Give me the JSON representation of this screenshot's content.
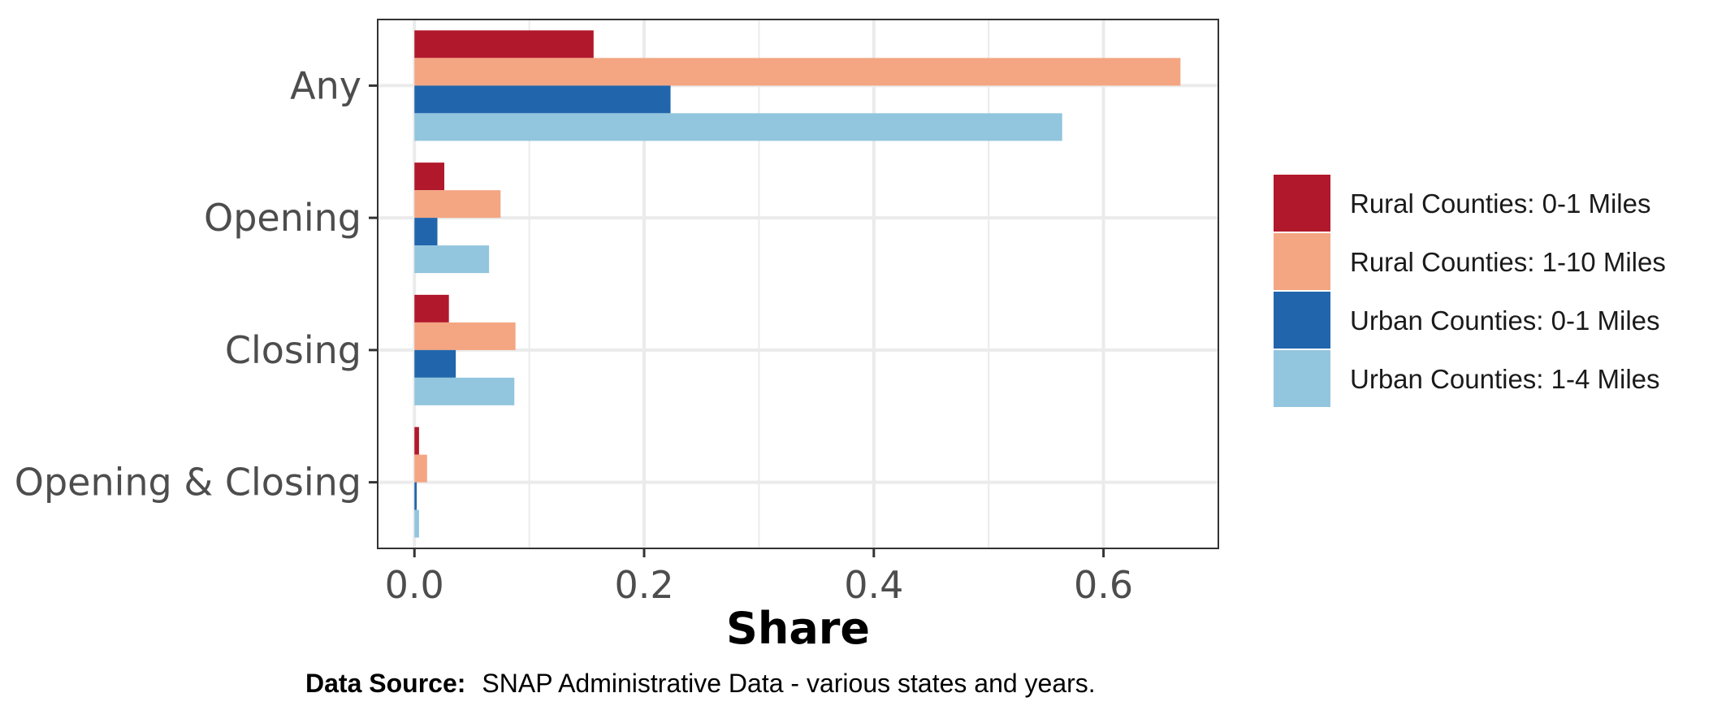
{
  "chart_data": {
    "type": "bar",
    "orientation": "horizontal",
    "categories": [
      "Any",
      "Opening",
      "Closing",
      "Opening & Closing"
    ],
    "series": [
      {
        "name": "Rural Counties: 0-1 Miles",
        "color": "#b2182b",
        "values": [
          0.156,
          0.026,
          0.03,
          0.004
        ]
      },
      {
        "name": "Rural Counties: 1-10 Miles",
        "color": "#f4a582",
        "values": [
          0.667,
          0.075,
          0.088,
          0.011
        ]
      },
      {
        "name": "Urban Counties: 0-1 Miles",
        "color": "#2166ac",
        "values": [
          0.223,
          0.02,
          0.036,
          0.002
        ]
      },
      {
        "name": "Urban Counties: 1-4 Miles",
        "color": "#92c5de",
        "values": [
          0.564,
          0.065,
          0.087,
          0.004
        ]
      }
    ],
    "xlabel": "Share",
    "ylabel": "",
    "xlim": [
      -0.032,
      0.7
    ],
    "xticks": [
      0.0,
      0.2,
      0.4,
      0.6
    ],
    "xtick_labels": [
      "0.0",
      "0.2",
      "0.4",
      "0.6"
    ],
    "grid": true,
    "legend_position": "right"
  },
  "caption": {
    "label": "Data Source:",
    "text": "SNAP Administrative Data - various states and years."
  }
}
